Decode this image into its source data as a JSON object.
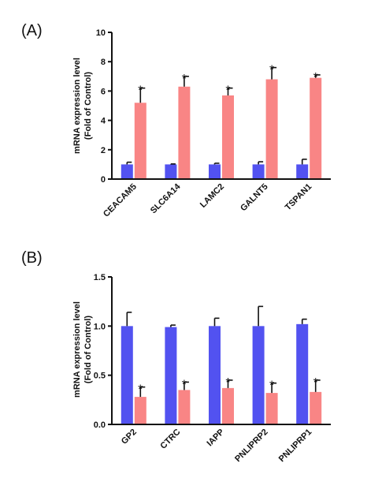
{
  "colors": {
    "control": "#5252f0",
    "treated": "#f98585",
    "axis": "#111111"
  },
  "chart_data": [
    {
      "type": "bar",
      "panel_label": "(A)",
      "ylabel_line1": "mRNA expression level",
      "ylabel_line2": "(Fold of Control)",
      "ylim": [
        0,
        10
      ],
      "ticks": [
        0,
        2,
        4,
        6,
        8,
        10
      ],
      "tick_labels": [
        "0",
        "2",
        "4",
        "6",
        "8",
        "10"
      ],
      "grid": false,
      "categories": [
        "CEACAM5",
        "SLC6A14",
        "LAMC2",
        "GALNT5",
        "TSPAN1"
      ],
      "series": [
        {
          "color": "#5252f0",
          "values": [
            1.0,
            1.0,
            1.0,
            1.0,
            1.0
          ],
          "errors": [
            0.15,
            0.03,
            0.08,
            0.18,
            0.35
          ]
        },
        {
          "color": "#f98585",
          "values": [
            5.2,
            6.3,
            5.7,
            6.8,
            6.9
          ],
          "errors": [
            1.0,
            0.7,
            0.5,
            0.8,
            0.2
          ]
        }
      ],
      "annotations": [
        "*",
        "*",
        "*",
        "*",
        "*"
      ]
    },
    {
      "type": "bar",
      "panel_label": "(B)",
      "ylabel_line1": "mRNA expression level",
      "ylabel_line2": "(Fold of Control)",
      "ylim": [
        0,
        1.5
      ],
      "ticks": [
        0,
        0.5,
        1.0,
        1.5
      ],
      "tick_labels": [
        "0.0",
        "0.5",
        "1.0",
        "1.5"
      ],
      "grid": false,
      "categories": [
        "GP2",
        "CTRC",
        "IAPP",
        "PNLIPRP2",
        "PNLIPRP1"
      ],
      "series": [
        {
          "color": "#5252f0",
          "values": [
            1.0,
            0.99,
            1.0,
            1.0,
            1.02
          ],
          "errors": [
            0.14,
            0.02,
            0.08,
            0.2,
            0.05
          ]
        },
        {
          "color": "#f98585",
          "values": [
            0.28,
            0.35,
            0.37,
            0.32,
            0.33
          ],
          "errors": [
            0.1,
            0.08,
            0.08,
            0.1,
            0.12
          ]
        }
      ],
      "annotations": [
        "*",
        "*",
        "*",
        "*",
        "*"
      ]
    }
  ]
}
